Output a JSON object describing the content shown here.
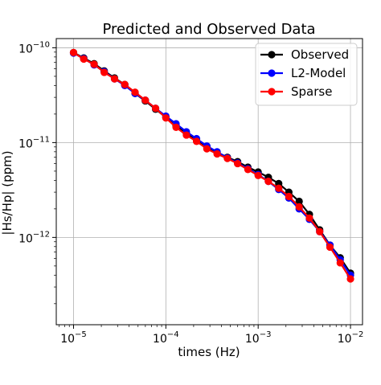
{
  "chart_data": {
    "type": "line",
    "title": "Predicted and Observed Data",
    "xlabel": "times (Hz)",
    "ylabel": "|Hs/Hp| (ppm)",
    "xscale": "log",
    "yscale": "log",
    "xlim": [
      6.5e-06,
      0.0135
    ],
    "ylim": [
      1.2e-13,
      1.25e-10
    ],
    "grid": true,
    "legend_position": "top-right",
    "x_ticks": [
      {
        "base": "10",
        "exp": "−5",
        "value": 1e-05
      },
      {
        "base": "10",
        "exp": "−4",
        "value": 0.0001
      },
      {
        "base": "10",
        "exp": "−3",
        "value": 0.001
      },
      {
        "base": "10",
        "exp": "−2",
        "value": 0.01
      }
    ],
    "y_ticks": [
      {
        "base": "10",
        "exp": "−12",
        "value": 1e-12
      },
      {
        "base": "10",
        "exp": "−11",
        "value": 1e-11
      },
      {
        "base": "10",
        "exp": "−10",
        "value": 1e-10
      }
    ],
    "x": [
      1e-05,
      1.29e-05,
      1.67e-05,
      2.15e-05,
      2.78e-05,
      3.59e-05,
      4.64e-05,
      5.99e-05,
      7.74e-05,
      0.0001,
      0.000129,
      0.000167,
      0.000215,
      0.000278,
      0.000359,
      0.000464,
      0.000599,
      0.000774,
      0.001,
      0.00129,
      0.00167,
      0.00215,
      0.00278,
      0.00359,
      0.00464,
      0.00599,
      0.00774,
      0.01
    ],
    "series": [
      {
        "name": "Observed",
        "color": "#000000",
        "values": [
          8.9e-11,
          7.8e-11,
          6.8e-11,
          5.7e-11,
          4.8e-11,
          4.1e-11,
          3.3e-11,
          2.75e-11,
          2.25e-11,
          1.85e-11,
          1.5e-11,
          1.25e-11,
          1.07e-11,
          9e-12,
          7.9e-12,
          7e-12,
          6.3e-12,
          5.5e-12,
          4.9e-12,
          4.3e-12,
          3.7e-12,
          3e-12,
          2.4e-12,
          1.75e-12,
          1.2e-12,
          8.3e-13,
          6.1e-13,
          4.2e-13
        ]
      },
      {
        "name": "L2-Model",
        "color": "#0000ff",
        "values": [
          8.8e-11,
          7.7e-11,
          6.6e-11,
          5.6e-11,
          4.7e-11,
          4e-11,
          3.3e-11,
          2.8e-11,
          2.3e-11,
          1.9e-11,
          1.58e-11,
          1.3e-11,
          1.1e-11,
          9.2e-12,
          8e-12,
          6.9e-12,
          6.1e-12,
          5.3e-12,
          4.6e-12,
          3.9e-12,
          3.2e-12,
          2.6e-12,
          2e-12,
          1.55e-12,
          1.15e-12,
          8.3e-13,
          5.8e-13,
          4e-13
        ]
      },
      {
        "name": "Sparse",
        "color": "#ff0000",
        "values": [
          8.9e-11,
          7.6e-11,
          6.7e-11,
          5.5e-11,
          4.7e-11,
          4.1e-11,
          3.4e-11,
          2.8e-11,
          2.3e-11,
          1.82e-11,
          1.45e-11,
          1.2e-11,
          1.03e-11,
          8.6e-12,
          7.6e-12,
          6.8e-12,
          6e-12,
          5.2e-12,
          4.5e-12,
          3.9e-12,
          3.3e-12,
          2.7e-12,
          2.1e-12,
          1.6e-12,
          1.15e-12,
          7.9e-13,
          5.4e-13,
          3.65e-13
        ]
      }
    ]
  }
}
